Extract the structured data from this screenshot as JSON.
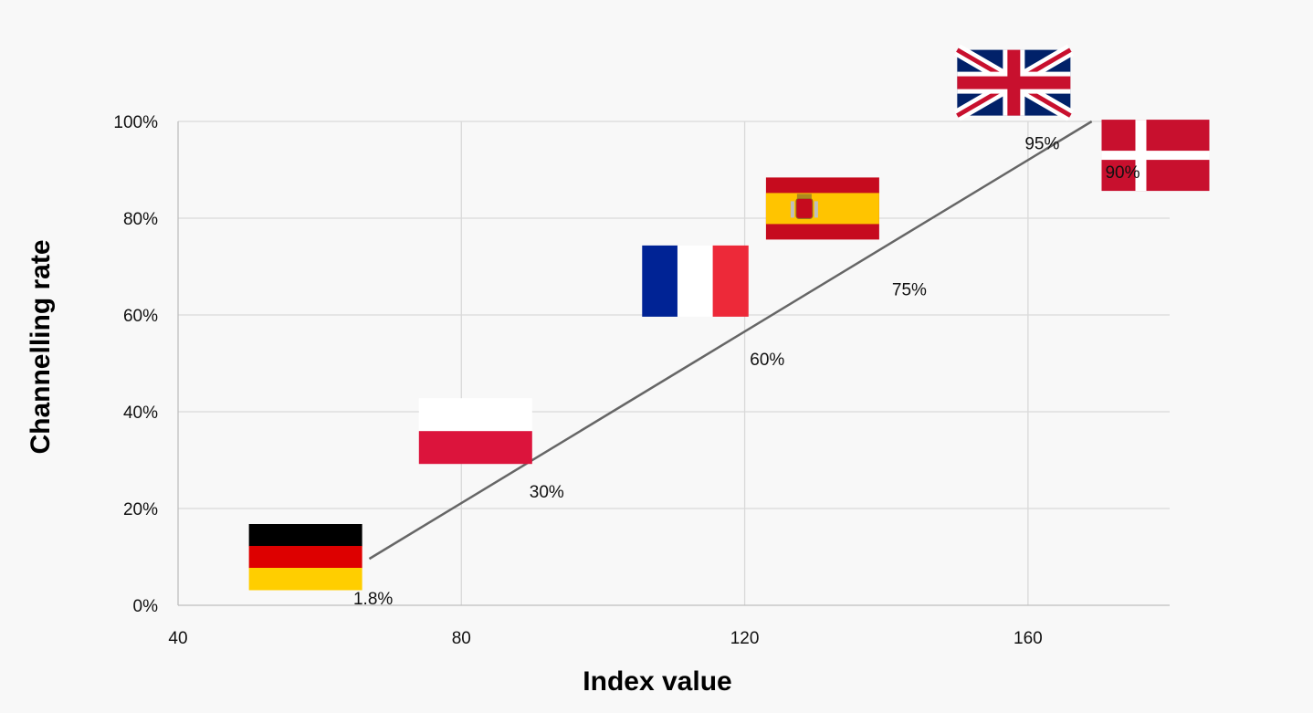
{
  "chart_data": {
    "type": "scatter",
    "xlabel": "Index value",
    "ylabel": "Channelling rate",
    "xlim": [
      40,
      180
    ],
    "ylim": [
      0,
      1.0
    ],
    "x_ticks": [
      40,
      80,
      120,
      160
    ],
    "x_tick_labels": [
      "40",
      "80",
      "120",
      "160"
    ],
    "y_ticks": [
      0,
      0.2,
      0.4,
      0.6,
      0.8,
      1.0
    ],
    "y_tick_labels": [
      "0%",
      "20%",
      "40%",
      "60%",
      "80%",
      "100%"
    ],
    "grid": true,
    "trendline": {
      "x": [
        67,
        169
      ],
      "y": [
        0.096,
        1.0
      ]
    },
    "points": [
      {
        "country": "germany",
        "flag": "germany-flag",
        "label": "1.8%",
        "x": 58,
        "y": 0.1
      },
      {
        "country": "poland",
        "flag": "poland-flag",
        "label": "30%",
        "x": 82,
        "y": 0.36
      },
      {
        "country": "france",
        "flag": "france-flag",
        "label": "60%",
        "x": 113,
        "y": 0.67
      },
      {
        "country": "spain",
        "flag": "spain-flag",
        "label": "75%",
        "x": 131,
        "y": 0.82
      },
      {
        "country": "uk",
        "flag": "uk-flag",
        "label": "95%",
        "x": 158,
        "y": 1.08
      },
      {
        "country": "denmark",
        "flag": "denmark-flag",
        "label": "90%",
        "x": 178,
        "y": 0.93
      }
    ],
    "colors": {
      "grid": "#d9d9d9",
      "axis": "#bfbfbf",
      "trendline": "#666666",
      "germany": [
        "#000000",
        "#dd0000",
        "#ffce00"
      ],
      "poland": [
        "#ffffff",
        "#dc143c"
      ],
      "france": [
        "#002395",
        "#ffffff",
        "#ed2939"
      ],
      "spain": [
        "#c60b1e",
        "#ffc400"
      ],
      "uk": [
        "#012169",
        "#ffffff",
        "#c8102e"
      ],
      "denmark": [
        "#c8102e",
        "#ffffff"
      ]
    }
  }
}
